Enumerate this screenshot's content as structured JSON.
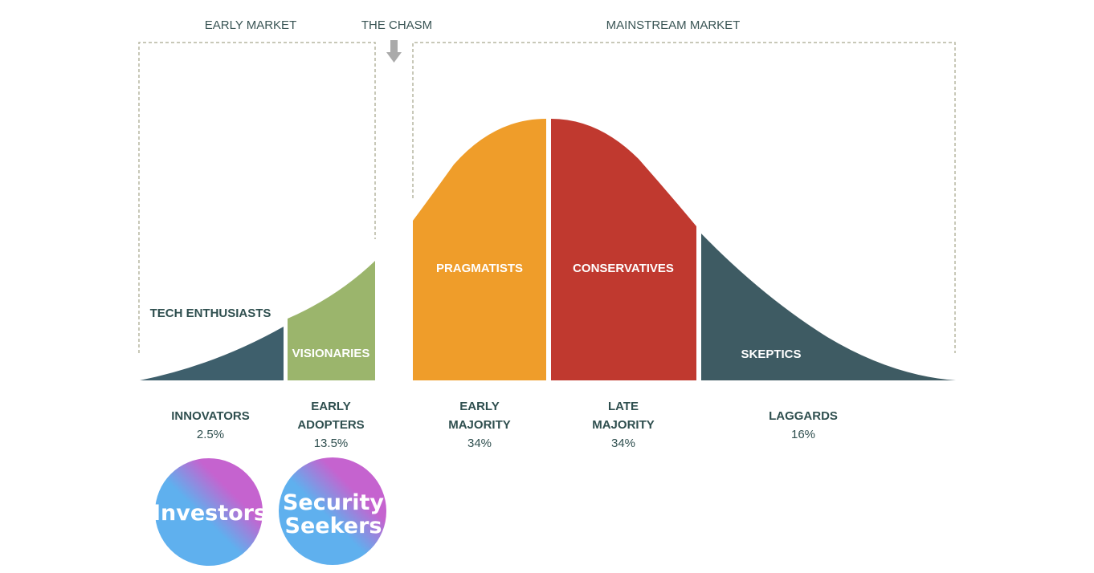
{
  "markets": {
    "early": "EARLY MARKET",
    "chasm": "THE CHASM",
    "mainstream": "MAINSTREAM MARKET"
  },
  "segments": [
    {
      "id": "innovators",
      "persona": "TECH ENTHUSIASTS",
      "group": [
        "INNOVATORS"
      ],
      "percent": "2.5%",
      "color": "#3e5f6c"
    },
    {
      "id": "early-adopters",
      "persona": "VISIONARIES",
      "group": [
        "EARLY",
        "ADOPTERS"
      ],
      "percent": "13.5%",
      "color": "#9bb56c"
    },
    {
      "id": "early-majority",
      "persona": "PRAGMATISTS",
      "group": [
        "EARLY",
        "MAJORITY"
      ],
      "percent": "34%",
      "color": "#ef9d2a"
    },
    {
      "id": "late-majority",
      "persona": "CONSERVATIVES",
      "group": [
        "LATE",
        "MAJORITY"
      ],
      "percent": "34%",
      "color": "#c0392f"
    },
    {
      "id": "laggards",
      "persona": "SKEPTICS",
      "group": [
        "LAGGARDS"
      ],
      "percent": "16%",
      "color": "#3e5b63"
    }
  ],
  "badges": [
    {
      "id": "investors",
      "lines": [
        "Investors"
      ]
    },
    {
      "id": "security-seekers",
      "lines": [
        "Security",
        "Seekers"
      ]
    }
  ],
  "colors": {
    "gradient_start": "#5fb0ee",
    "gradient_end": "#c563cf",
    "arrow": "#aaaaaa"
  }
}
